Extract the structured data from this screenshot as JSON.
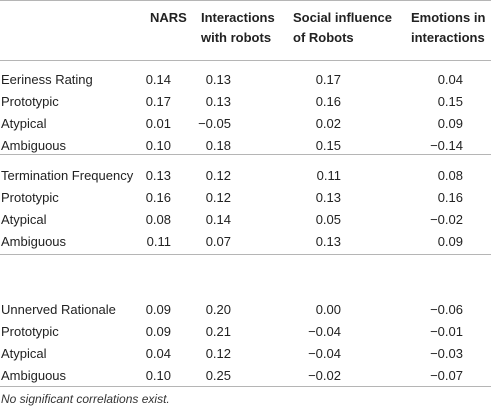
{
  "table": {
    "headers": [
      "NARS",
      "Interactions with robots",
      "Social influence of Robots",
      "Emotions in interactions"
    ],
    "header_lines": [
      [
        "NARS"
      ],
      [
        "Interactions",
        "with robots"
      ],
      [
        "Social influence",
        "of Robots"
      ],
      [
        "Emotions in",
        "interactions"
      ]
    ],
    "blocks": [
      {
        "rows": [
          {
            "label": "Eeriness Rating",
            "values": [
              "0.14",
              "0.13",
              "0.17",
              "0.04"
            ]
          },
          {
            "label": "Prototypic",
            "values": [
              "0.17",
              "0.13",
              "0.16",
              "0.15"
            ]
          },
          {
            "label": "Atypical",
            "values": [
              "0.01",
              "−0.05",
              "0.02",
              "0.09"
            ]
          },
          {
            "label": "Ambiguous",
            "values": [
              "0.10",
              "0.18",
              "0.15",
              "−0.14"
            ]
          }
        ]
      },
      {
        "rows": [
          {
            "label": "Termination Frequency",
            "values": [
              "0.13",
              "0.12",
              "0.11",
              "0.08"
            ]
          },
          {
            "label": "Prototypic",
            "values": [
              "0.16",
              "0.12",
              "0.13",
              "0.16"
            ]
          },
          {
            "label": "Atypical",
            "values": [
              "0.08",
              "0.14",
              "0.05",
              "−0.02"
            ]
          },
          {
            "label": "Ambiguous",
            "values": [
              "0.11",
              "0.07",
              "0.13",
              "0.09"
            ]
          }
        ]
      },
      {
        "rows": [
          {
            "label": "Unnerved Rationale",
            "values": [
              "0.09",
              "0.20",
              "0.00",
              "−0.06"
            ]
          },
          {
            "label": "Prototypic",
            "values": [
              "0.09",
              "0.21",
              "−0.04",
              "−0.01"
            ]
          },
          {
            "label": "Atypical",
            "values": [
              "0.04",
              "0.12",
              "−0.04",
              "−0.03"
            ]
          },
          {
            "label": "Ambiguous",
            "values": [
              "0.10",
              "0.25",
              "−0.02",
              "−0.07"
            ]
          }
        ]
      }
    ],
    "footnote": "No significant correlations exist."
  }
}
